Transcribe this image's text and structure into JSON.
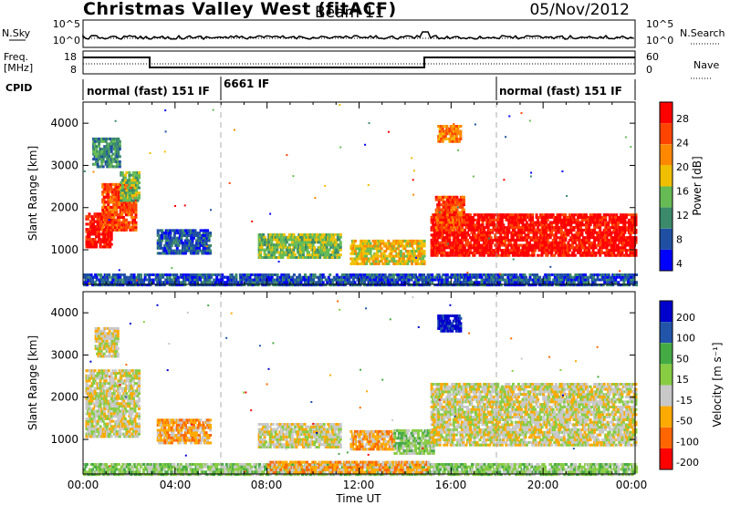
{
  "header": {
    "station": "Christmas Valley West (fitACF)",
    "beam": "Beam 11",
    "date": "05/Nov/2012"
  },
  "small_panels": {
    "nsky_label": "N.Sky",
    "nsearch_label": "N.Search",
    "noise_ticks": [
      "10^5",
      "10^0"
    ],
    "freq_label_1": "Freq.",
    "freq_label_2": "[MHz]",
    "freq_ticks": [
      "18",
      "8"
    ],
    "nave_label": "Nave",
    "nave_ticks": [
      "60",
      "0"
    ],
    "cpid_label": "CPID",
    "cpid_segments": [
      {
        "label": "normal (fast) 151 IF",
        "start_h": 0,
        "end_h": 6
      },
      {
        "label": "6661 IF",
        "start_h": 6,
        "end_h": 18
      },
      {
        "label": "normal (fast) 151 IF",
        "start_h": 18,
        "end_h": 24
      }
    ]
  },
  "colors": {
    "power": [
      "#0000ff",
      "#1f4fa3",
      "#3a8a6b",
      "#66bb55",
      "#f0c000",
      "#ff8800",
      "#ff4400",
      "#ff0000"
    ],
    "velocity": [
      "#ff0000",
      "#ff6600",
      "#ffaa00",
      "#c8c8c8",
      "#88cc44",
      "#44aa44",
      "#2255aa",
      "#0000cc"
    ],
    "ground": "#c8c8c8"
  },
  "chart_data": [
    {
      "type": "heatmap",
      "name": "power-panel",
      "ylabel": "Slant Range [km]",
      "xlabel": "Time UT",
      "x_ticks": [
        "00:00",
        "04:00",
        "08:00",
        "12:00",
        "16:00",
        "20:00",
        "00:00"
      ],
      "y_ticks": [
        1000,
        2000,
        3000,
        4000
      ],
      "xlim_hours": [
        0,
        24
      ],
      "ylim_km": [
        180,
        4500
      ],
      "colorbar_label": "Power [dB]",
      "colorbar_ticks": [
        "28",
        "24",
        "20",
        "16",
        "12",
        "8",
        "4"
      ],
      "regions": [
        {
          "t0": 0.1,
          "t1": 1.2,
          "r0": 1100,
          "r1": 1900,
          "level": 7
        },
        {
          "t0": 0.8,
          "t1": 2.3,
          "r0": 1500,
          "r1": 2600,
          "level": 6
        },
        {
          "t0": 0.4,
          "t1": 1.6,
          "r0": 3000,
          "r1": 3700,
          "level": 2
        },
        {
          "t0": 1.6,
          "t1": 2.4,
          "r0": 2200,
          "r1": 2900,
          "level": 3
        },
        {
          "t0": 3.2,
          "t1": 5.5,
          "r0": 950,
          "r1": 1550,
          "level": 1
        },
        {
          "t0": 7.6,
          "t1": 11.2,
          "r0": 850,
          "r1": 1450,
          "level": 3
        },
        {
          "t0": 11.6,
          "t1": 14.8,
          "r0": 700,
          "r1": 1250,
          "level": 4
        },
        {
          "t0": 15.1,
          "t1": 24.0,
          "r0": 900,
          "r1": 1900,
          "level": 7
        },
        {
          "t0": 15.3,
          "t1": 16.5,
          "r0": 1500,
          "r1": 2300,
          "level": 6
        },
        {
          "t0": 15.4,
          "t1": 16.4,
          "r0": 3600,
          "r1": 4000,
          "level": 5
        },
        {
          "t0": 0.0,
          "t1": 24.0,
          "r0": 200,
          "r1": 450,
          "level": 1
        }
      ]
    },
    {
      "type": "heatmap",
      "name": "velocity-panel",
      "ylabel": "Slant Range [km]",
      "xlabel": "Time UT",
      "x_ticks": [
        "00:00",
        "04:00",
        "08:00",
        "12:00",
        "16:00",
        "20:00",
        "00:00"
      ],
      "y_ticks": [
        1000,
        2000,
        3000,
        4000
      ],
      "xlim_hours": [
        0,
        24
      ],
      "ylim_km": [
        180,
        4500
      ],
      "colorbar_label": "Velocity [m s⁻¹]",
      "colorbar_ticks": [
        "200",
        "100",
        "50",
        "15",
        "-15",
        "-50",
        "-100",
        "-200"
      ],
      "regions": [
        {
          "t0": 0.1,
          "t1": 2.4,
          "r0": 1100,
          "r1": 2700,
          "level": 3
        },
        {
          "t0": 0.5,
          "t1": 1.5,
          "r0": 3000,
          "r1": 3700,
          "level": 3
        },
        {
          "t0": 3.2,
          "t1": 5.5,
          "r0": 950,
          "r1": 1550,
          "level": 2
        },
        {
          "t0": 7.6,
          "t1": 11.2,
          "r0": 850,
          "r1": 1450,
          "level": 3
        },
        {
          "t0": 11.6,
          "t1": 13.5,
          "r0": 800,
          "r1": 1250,
          "level": 2
        },
        {
          "t0": 13.5,
          "t1": 15.2,
          "r0": 700,
          "r1": 1300,
          "level": 4
        },
        {
          "t0": 15.1,
          "t1": 24.0,
          "r0": 900,
          "r1": 2400,
          "level": 3
        },
        {
          "t0": 15.4,
          "t1": 16.4,
          "r0": 3600,
          "r1": 4000,
          "level": 7
        },
        {
          "t0": 0.0,
          "t1": 24.0,
          "r0": 200,
          "r1": 450,
          "level": 4
        },
        {
          "t0": 8.0,
          "t1": 15.0,
          "r0": 250,
          "r1": 500,
          "level": 2
        }
      ]
    }
  ]
}
